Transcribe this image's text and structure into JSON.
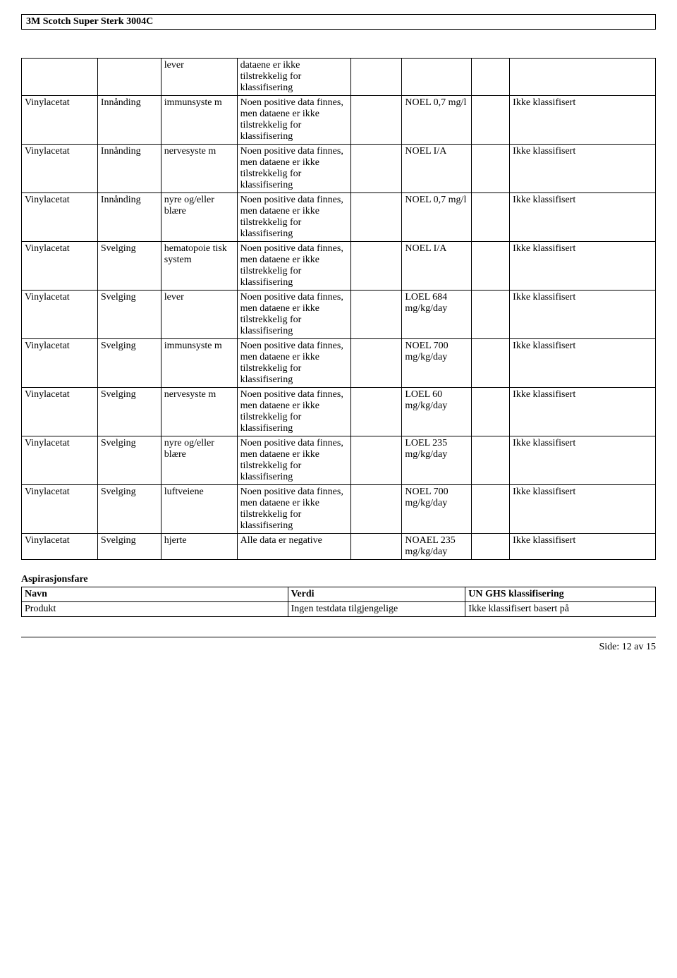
{
  "doc_title": "3M Scotch Super Sterk 3004C",
  "main_table": {
    "rows": [
      {
        "c1": "",
        "c2": "",
        "c3": "lever",
        "c4": "dataene er ikke tilstrekkelig for klassifisering",
        "c5": "",
        "c6": "",
        "c7": "",
        "c8": ""
      },
      {
        "c1": "Vinylacetat",
        "c2": "Innånding",
        "c3": "immunsyste\nm",
        "c4": "Noen positive data finnes, men dataene er ikke tilstrekkelig for klassifisering",
        "c5": "",
        "c6": "NOEL 0,7 mg/l",
        "c7": "",
        "c8": "Ikke klassifisert"
      },
      {
        "c1": "Vinylacetat",
        "c2": "Innånding",
        "c3": "nervesyste\nm",
        "c4": "Noen positive data finnes, men dataene er ikke tilstrekkelig for klassifisering",
        "c5": "",
        "c6": "NOEL I/A",
        "c7": "",
        "c8": "Ikke klassifisert"
      },
      {
        "c1": "Vinylacetat",
        "c2": "Innånding",
        "c3": "nyre og/eller blære",
        "c4": "Noen positive data finnes, men dataene er ikke tilstrekkelig for klassifisering",
        "c5": "",
        "c6": "NOEL 0,7 mg/l",
        "c7": "",
        "c8": "Ikke klassifisert"
      },
      {
        "c1": "Vinylacetat",
        "c2": "Svelging",
        "c3": "hematopoie\ntisk system",
        "c4": "Noen positive data finnes, men dataene er ikke tilstrekkelig for klassifisering",
        "c5": "",
        "c6": "NOEL I/A",
        "c7": "",
        "c8": "Ikke klassifisert"
      },
      {
        "c1": "Vinylacetat",
        "c2": "Svelging",
        "c3": "lever",
        "c4": "Noen positive data finnes, men dataene er ikke tilstrekkelig for klassifisering",
        "c5": "",
        "c6": "LOEL 684 mg/kg/day",
        "c7": "",
        "c8": "Ikke klassifisert"
      },
      {
        "c1": "Vinylacetat",
        "c2": "Svelging",
        "c3": "immunsyste\nm",
        "c4": "Noen positive data finnes, men dataene er ikke tilstrekkelig for klassifisering",
        "c5": "",
        "c6": "NOEL 700 mg/kg/day",
        "c7": "",
        "c8": "Ikke klassifisert"
      },
      {
        "c1": "Vinylacetat",
        "c2": "Svelging",
        "c3": "nervesyste\nm",
        "c4": "Noen positive data finnes, men dataene er ikke tilstrekkelig for klassifisering",
        "c5": "",
        "c6": "LOEL 60 mg/kg/day",
        "c7": "",
        "c8": "Ikke klassifisert"
      },
      {
        "c1": "Vinylacetat",
        "c2": "Svelging",
        "c3": "nyre og/eller blære",
        "c4": "Noen positive data finnes, men dataene er ikke tilstrekkelig for klassifisering",
        "c5": "",
        "c6": "LOEL 235 mg/kg/day",
        "c7": "",
        "c8": "Ikke klassifisert"
      },
      {
        "c1": "Vinylacetat",
        "c2": "Svelging",
        "c3": "luftveiene",
        "c4": "Noen positive data finnes, men dataene er ikke tilstrekkelig for klassifisering",
        "c5": "",
        "c6": "NOEL 700 mg/kg/day",
        "c7": "",
        "c8": "Ikke klassifisert"
      },
      {
        "c1": "Vinylacetat",
        "c2": "Svelging",
        "c3": "hjerte",
        "c4": "Alle data er negative",
        "c5": "",
        "c6": "NOAEL 235 mg/kg/day",
        "c7": "",
        "c8": "Ikke klassifisert"
      }
    ]
  },
  "aspiration": {
    "heading": "Aspirasjonsfare",
    "headers": [
      "Navn",
      "Verdi",
      "UN GHS klassifisering"
    ],
    "row": [
      "Produkt",
      "Ingen testdata tilgjengelige",
      "Ikke klassifisert basert på"
    ]
  },
  "footer": "Side: 12 av  15"
}
